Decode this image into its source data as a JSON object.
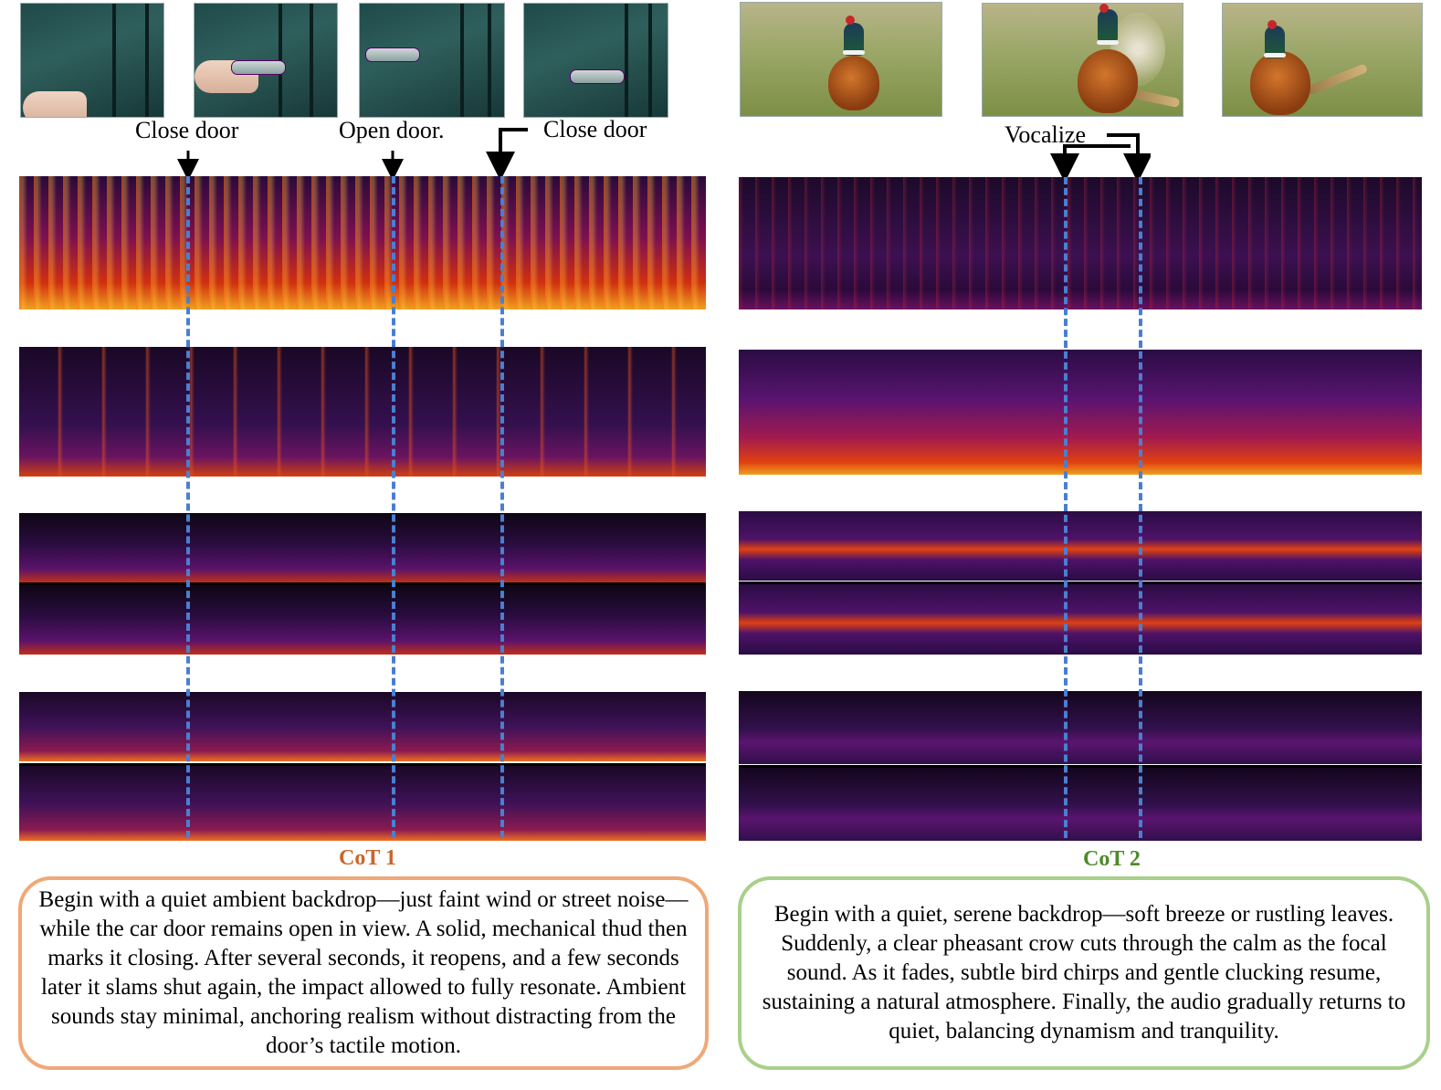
{
  "left": {
    "labels": {
      "close_door_1": "Close door",
      "open_door": "Open door.",
      "close_door_2": "Close door"
    },
    "cot_title": "CoT 1",
    "description": "Begin with a quiet ambient backdrop—just faint wind or street noise—while the car door remains open in view. A solid, mechanical thud then marks it closing. After several seconds, it reopens, and a few seconds later it slams shut again, the impact allowed to fully resonate. Ambient sounds stay minimal, anchoring realism without distracting from the door’s tactile motion."
  },
  "right": {
    "labels": {
      "vocalize": "Vocalize"
    },
    "cot_title": "CoT 2",
    "description": "Begin with a quiet, serene backdrop—soft breeze or rustling leaves. Suddenly, a clear pheasant crow cuts through the calm as the focal sound. As it fades, subtle bird chirps and gentle clucking resume, sustaining a natural atmosphere. Finally, the audio gradually returns to quiet, balancing dynamism and tranquility."
  },
  "colors": {
    "cot1": "#c9662a",
    "cot2": "#4e8a2a",
    "box1_border": "#f0a878",
    "box2_border": "#a8d08a",
    "event_line": "#4a7fd0"
  }
}
